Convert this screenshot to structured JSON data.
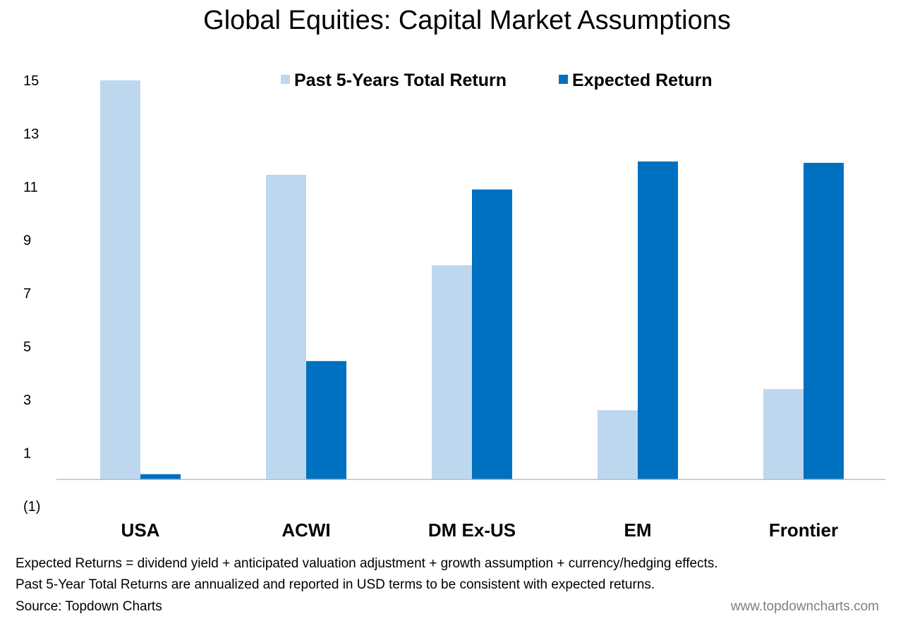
{
  "chart_data": {
    "type": "bar",
    "title": "Global Equities: Capital Market Assumptions",
    "categories": [
      "USA",
      "ACWI",
      "DM Ex-US",
      "EM",
      "Frontier"
    ],
    "series": [
      {
        "name": "Past 5-Years Total Return",
        "color": "#bdd7ee",
        "values": [
          15.0,
          11.45,
          8.05,
          2.6,
          3.4
        ]
      },
      {
        "name": "Expected Return",
        "color": "#0070c0",
        "values": [
          0.2,
          4.45,
          10.9,
          11.95,
          11.9
        ]
      }
    ],
    "y_ticks": [
      "15",
      "13",
      "11",
      "9",
      "7",
      "5",
      "3",
      "1",
      "(1)"
    ],
    "y_tick_values": [
      15,
      13,
      11,
      9,
      7,
      5,
      3,
      1,
      -1
    ],
    "ylim": [
      -1,
      15
    ],
    "xlabel": "",
    "ylabel": "",
    "grid": false,
    "legend_position": "top"
  },
  "footnotes": [
    "Expected Returns = dividend yield + anticipated valuation adjustment + growth assumption + currency/hedging effects.",
    "Past 5-Year Total Returns are annualized and reported in USD terms to be consistent with expected returns."
  ],
  "source": "Source: Topdown Charts",
  "website": "www.topdowncharts.com"
}
